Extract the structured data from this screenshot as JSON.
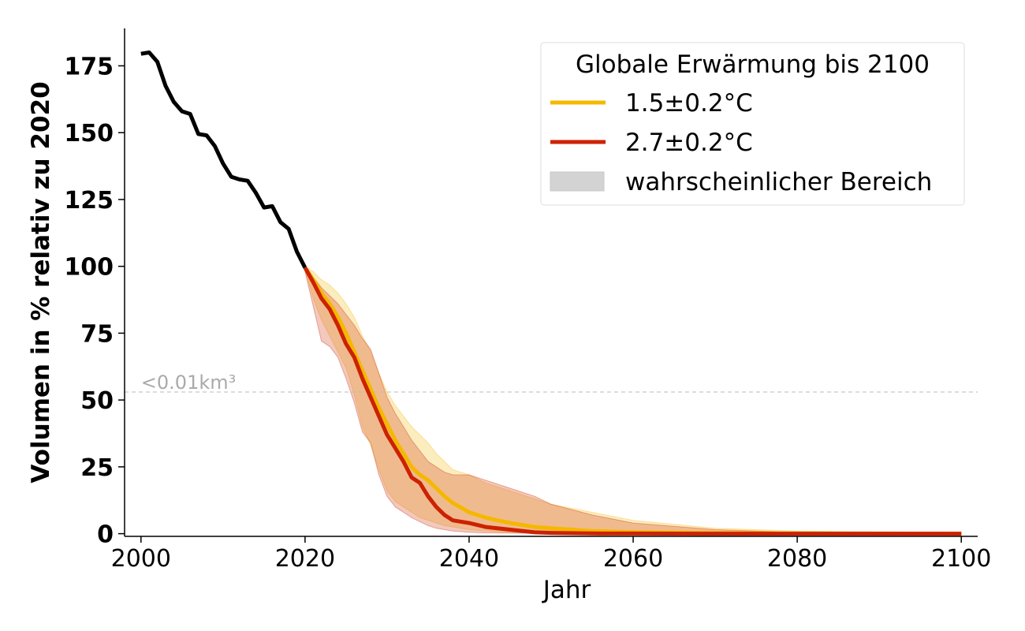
{
  "chart_data": {
    "type": "line",
    "xlabel": "Jahr",
    "ylabel": "Volumen in % relativ zu 2020",
    "xlim": [
      1998,
      2102
    ],
    "ylim": [
      -1,
      189
    ],
    "x_ticks": [
      2000,
      2020,
      2040,
      2060,
      2080,
      2100
    ],
    "y_ticks": [
      0,
      25,
      50,
      75,
      100,
      125,
      150,
      175
    ],
    "grid": false,
    "legend": {
      "title": "Globale Erwärmung bis 2100",
      "placement": "top-right",
      "entries": [
        {
          "label": "1.5±0.2°C",
          "kind": "line",
          "color": "#f5b800"
        },
        {
          "label": "2.7±0.2°C",
          "kind": "line",
          "color": "#cc2200"
        },
        {
          "label": "wahrscheinlicher Bereich",
          "kind": "patch",
          "color": "#d3d3d3"
        }
      ]
    },
    "annotation": {
      "text": "<0.01km³",
      "y": 53,
      "color": "#aaaaaa"
    },
    "historical": {
      "color": "#000000",
      "x": [
        2000,
        2001,
        2002,
        2003,
        2004,
        2005,
        2006,
        2007,
        2008,
        2009,
        2010,
        2011,
        2012,
        2013,
        2014,
        2015,
        2016,
        2017,
        2018,
        2019,
        2020
      ],
      "y": [
        179.5,
        180,
        176.5,
        167.5,
        161.5,
        158,
        157,
        149.5,
        149,
        145,
        138.5,
        133.5,
        132.5,
        132,
        127.5,
        122,
        122.5,
        116.5,
        114,
        105.5,
        99.5
      ]
    },
    "series": [
      {
        "color": "#f5b800",
        "x": [
          2020,
          2021,
          2022,
          2023,
          2024,
          2025,
          2026,
          2027,
          2028,
          2029,
          2030,
          2031,
          2032,
          2033,
          2034,
          2035,
          2036,
          2037,
          2038,
          2040,
          2042,
          2045,
          2048,
          2050,
          2055,
          2060,
          2070,
          2080,
          2090,
          2100
        ],
        "y": [
          99.5,
          95,
          90,
          86,
          81,
          75,
          68,
          61,
          54,
          47,
          41,
          35,
          30,
          25,
          22,
          20,
          17,
          14,
          11.5,
          8,
          6,
          4,
          2.5,
          2,
          1,
          0.6,
          0.2,
          0.1,
          0.05,
          0
        ],
        "band_upper": [
          100,
          98,
          95,
          93,
          90,
          86,
          81,
          74,
          68,
          60,
          53,
          48,
          44,
          40,
          37,
          34,
          30,
          27,
          24,
          22,
          19,
          16,
          13,
          11,
          8,
          5,
          2,
          1,
          0.5,
          0.3
        ],
        "band_lower": [
          99,
          88,
          80,
          74,
          68,
          62,
          52,
          40,
          33,
          24,
          16,
          12,
          10,
          8,
          6,
          5,
          4,
          3,
          2.5,
          1.5,
          1,
          0.5,
          0.3,
          0.2,
          0.1,
          0.05,
          0,
          0,
          0,
          0
        ]
      },
      {
        "color": "#cc2200",
        "x": [
          2020,
          2021,
          2022,
          2023,
          2024,
          2025,
          2026,
          2027,
          2028,
          2029,
          2030,
          2031,
          2032,
          2033,
          2034,
          2035,
          2036,
          2037,
          2038,
          2040,
          2042,
          2045,
          2048,
          2050,
          2055,
          2060,
          2070,
          2080,
          2090,
          2100
        ],
        "y": [
          99.5,
          94,
          88,
          84,
          78,
          71,
          66,
          58,
          51,
          44,
          37,
          32,
          27,
          21,
          19,
          14,
          10,
          7,
          5,
          4,
          2.5,
          1.5,
          0.5,
          0.3,
          0.1,
          0.05,
          0,
          0,
          0,
          0
        ],
        "band_upper": [
          99,
          96,
          92,
          89,
          86,
          82,
          78,
          73,
          69,
          60,
          51,
          45,
          40,
          35,
          31,
          27,
          25,
          23,
          22,
          22,
          20,
          17,
          14,
          11,
          7,
          4,
          1.5,
          0.5,
          0.2,
          0.1
        ],
        "band_lower": [
          98,
          85,
          72,
          70,
          66,
          58,
          49,
          38,
          34,
          22,
          14,
          10,
          8,
          6,
          4.5,
          3,
          2,
          1.5,
          1,
          0.5,
          0.3,
          0.2,
          0.1,
          0.05,
          0,
          0,
          0,
          0,
          0,
          0
        ]
      }
    ]
  }
}
